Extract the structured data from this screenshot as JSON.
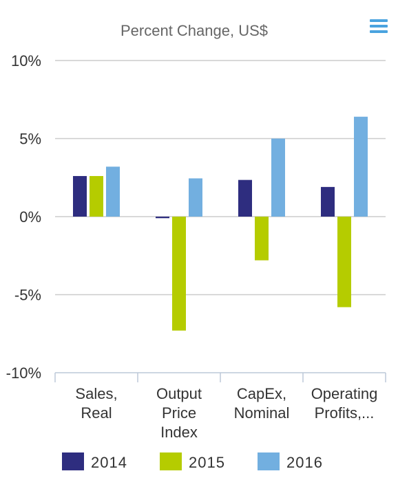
{
  "chart_data": {
    "type": "bar",
    "title": "Percent Change, US$",
    "categories": [
      [
        "Sales,",
        "Real"
      ],
      [
        "Output",
        "Price",
        "Index"
      ],
      [
        "CapEx,",
        "Nominal"
      ],
      [
        "Operating",
        "Profits,..."
      ]
    ],
    "series": [
      {
        "name": "2014",
        "color": "#2e2d7f",
        "values": [
          2.6,
          -0.1,
          2.35,
          1.9
        ]
      },
      {
        "name": "2015",
        "color": "#b5cc00",
        "values": [
          2.6,
          -7.3,
          -2.8,
          -5.8
        ]
      },
      {
        "name": "2016",
        "color": "#72afe0",
        "values": [
          3.2,
          2.45,
          5.0,
          6.4
        ]
      }
    ],
    "ylim": [
      -10,
      10
    ],
    "yticks": [
      10,
      5,
      0,
      -5,
      -10
    ],
    "ytick_labels": [
      "10%",
      "5%",
      "0%",
      "-5%",
      "-10%"
    ],
    "grid": true,
    "legend_position": "bottom"
  },
  "toolbar": {
    "menu_icon": "hamburger-menu-icon",
    "menu_color": "#4aa3df"
  }
}
